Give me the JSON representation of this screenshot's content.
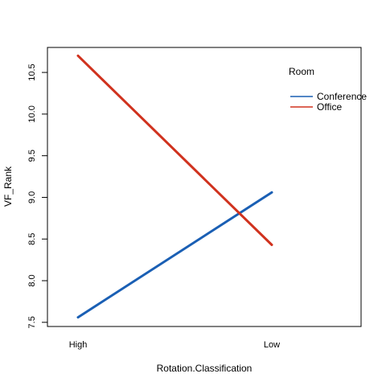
{
  "chart_data": {
    "type": "line",
    "title": "",
    "xlabel": "Rotation.Classification",
    "ylabel": "VF_Rank",
    "categories": [
      "High",
      "Low"
    ],
    "ylim": [
      7.45,
      10.8
    ],
    "yticks": [
      "7.5",
      "8.0",
      "8.5",
      "9.0",
      "9.5",
      "10.0",
      "10.5"
    ],
    "ytick_values": [
      7.5,
      8.0,
      8.5,
      9.0,
      9.5,
      10.0,
      10.5
    ],
    "grid": false,
    "legend": {
      "title": "Room",
      "position": "top-right"
    },
    "series": [
      {
        "name": "Conference",
        "color": "#1a5fb4",
        "values": [
          7.56,
          9.06
        ]
      },
      {
        "name": "Office",
        "color": "#d0321e",
        "values": [
          10.7,
          8.43
        ]
      }
    ]
  }
}
